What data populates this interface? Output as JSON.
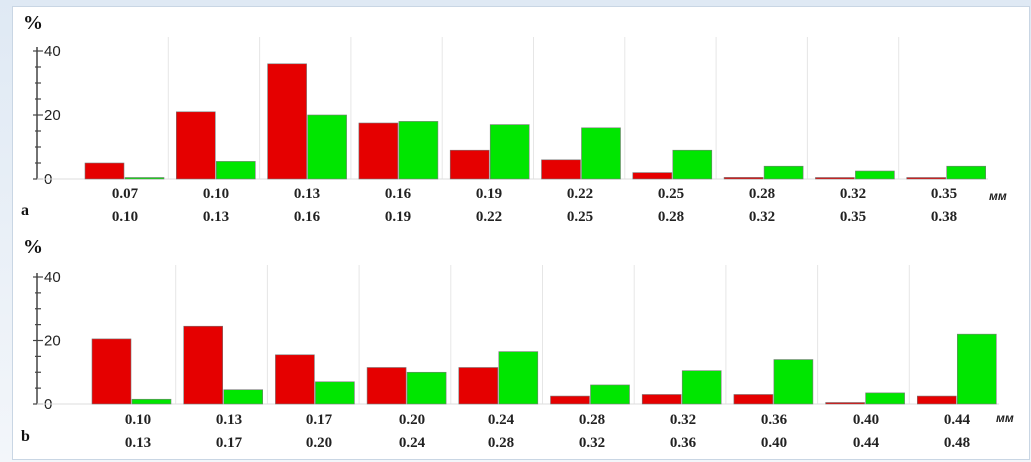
{
  "chart_data": [
    {
      "type": "bar",
      "panel_label": "a",
      "y_unit": "%",
      "x_unit": "мм",
      "ylim": [
        0,
        40
      ],
      "yticks": [
        "0",
        "20",
        "40"
      ],
      "categories": [
        [
          "0.07",
          "0.10"
        ],
        [
          "0.10",
          "0.13"
        ],
        [
          "0.13",
          "0.16"
        ],
        [
          "0.16",
          "0.19"
        ],
        [
          "0.19",
          "0.22"
        ],
        [
          "0.22",
          "0.25"
        ],
        [
          "0.25",
          "0.28"
        ],
        [
          "0.28",
          "0.32"
        ],
        [
          "0.32",
          "0.35"
        ],
        [
          "0.35",
          "0.38"
        ]
      ],
      "series": [
        {
          "color": "#e50000",
          "values": [
            5,
            21,
            36,
            17.5,
            9,
            6,
            2,
            0.5,
            0.3,
            0.4
          ]
        },
        {
          "color": "#00e600",
          "values": [
            0.3,
            5.5,
            20,
            18,
            17,
            16,
            9,
            4,
            2.5,
            4
          ]
        }
      ],
      "grid": false
    },
    {
      "type": "bar",
      "panel_label": "b",
      "y_unit": "%",
      "x_unit": "мм",
      "ylim": [
        0,
        40
      ],
      "yticks": [
        "0",
        "20",
        "40"
      ],
      "categories": [
        [
          "0.10",
          "0.13"
        ],
        [
          "0.13",
          "0.17"
        ],
        [
          "0.17",
          "0.20"
        ],
        [
          "0.20",
          "0.24"
        ],
        [
          "0.24",
          "0.28"
        ],
        [
          "0.28",
          "0.32"
        ],
        [
          "0.32",
          "0.36"
        ],
        [
          "0.36",
          "0.40"
        ],
        [
          "0.40",
          "0.44"
        ],
        [
          "0.44",
          "0.48"
        ]
      ],
      "series": [
        {
          "color": "#e50000",
          "values": [
            20.5,
            24.5,
            15.5,
            11.5,
            11.5,
            2.5,
            3,
            3,
            0.3,
            2.5
          ]
        },
        {
          "color": "#00e600",
          "values": [
            1.5,
            4.5,
            7,
            10,
            16.5,
            6,
            10.5,
            14,
            3.5,
            22
          ]
        }
      ],
      "grid": false
    }
  ]
}
